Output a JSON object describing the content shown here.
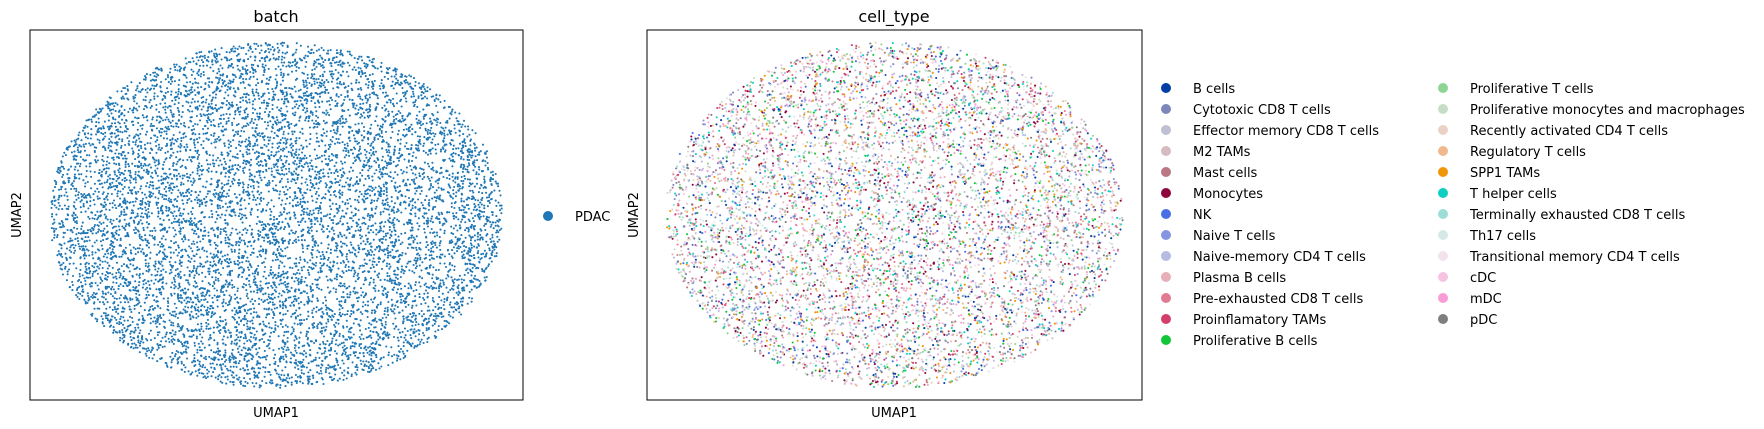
{
  "chart_data": [
    {
      "type": "scatter",
      "title": "batch",
      "xlabel": "UMAP1",
      "ylabel": "UMAP2",
      "grid": false,
      "ticks": "none",
      "legend_position": "right",
      "series": [
        {
          "name": "PDAC",
          "color": "#1f77b4"
        }
      ]
    },
    {
      "type": "scatter",
      "title": "cell_type",
      "xlabel": "UMAP1",
      "ylabel": "UMAP2",
      "grid": false,
      "ticks": "none",
      "legend_position": "right",
      "legend_columns": 2,
      "series": [
        {
          "name": "B cells",
          "color": "#023fa5"
        },
        {
          "name": "Cytotoxic CD8 T cells",
          "color": "#7d87b9"
        },
        {
          "name": "Effector memory CD8 T cells",
          "color": "#bec1d4"
        },
        {
          "name": "M2 TAMs",
          "color": "#d6bcc0"
        },
        {
          "name": "Mast cells",
          "color": "#bb7784"
        },
        {
          "name": "Monocytes",
          "color": "#8e063b"
        },
        {
          "name": "NK",
          "color": "#4a6fe3"
        },
        {
          "name": "Naive T cells",
          "color": "#8595e1"
        },
        {
          "name": "Naive-memory CD4 T cells",
          "color": "#b5bbe3"
        },
        {
          "name": "Plasma B cells",
          "color": "#e6afb9"
        },
        {
          "name": "Pre-exhausted CD8 T cells",
          "color": "#e07b91"
        },
        {
          "name": "Proinflamatory TAMs",
          "color": "#d33f6a"
        },
        {
          "name": "Proliferative B cells",
          "color": "#11c638"
        },
        {
          "name": "Proliferative T cells",
          "color": "#8dd593"
        },
        {
          "name": "Proliferative monocytes and macrophages",
          "color": "#c6dec7"
        },
        {
          "name": "Recently activated CD4 T cells",
          "color": "#ead3c6"
        },
        {
          "name": "Regulatory T cells",
          "color": "#f0b98d"
        },
        {
          "name": "SPP1 TAMs",
          "color": "#ef9708"
        },
        {
          "name": "T helper cells",
          "color": "#0fcfc0"
        },
        {
          "name": "Terminally exhausted CD8 T cells",
          "color": "#9cded6"
        },
        {
          "name": "Th17 cells",
          "color": "#d5eae7"
        },
        {
          "name": "Transitional memory CD4 T cells",
          "color": "#f3e1eb"
        },
        {
          "name": "cDC",
          "color": "#f6c4e1"
        },
        {
          "name": "mDC",
          "color": "#f79cd4"
        },
        {
          "name": "pDC",
          "color": "#7f7f7f"
        }
      ]
    }
  ]
}
